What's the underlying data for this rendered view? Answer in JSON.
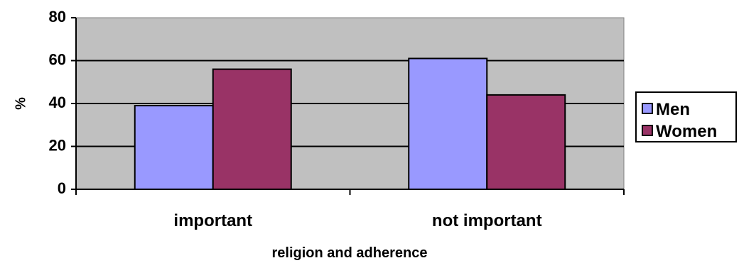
{
  "chart_data": {
    "type": "bar",
    "categories": [
      "important",
      "not important"
    ],
    "series": [
      {
        "name": "Men",
        "values": [
          39,
          61
        ],
        "color": "#9999ff"
      },
      {
        "name": "Women",
        "values": [
          56,
          44
        ],
        "color": "#993366"
      }
    ],
    "xlabel": "religion and adherence",
    "ylabel": "%",
    "ylim": [
      0,
      80
    ],
    "yticks": [
      0,
      20,
      40,
      60,
      80
    ],
    "grid": true,
    "plot_background": "#c0c0c0",
    "legend_position": "right"
  }
}
